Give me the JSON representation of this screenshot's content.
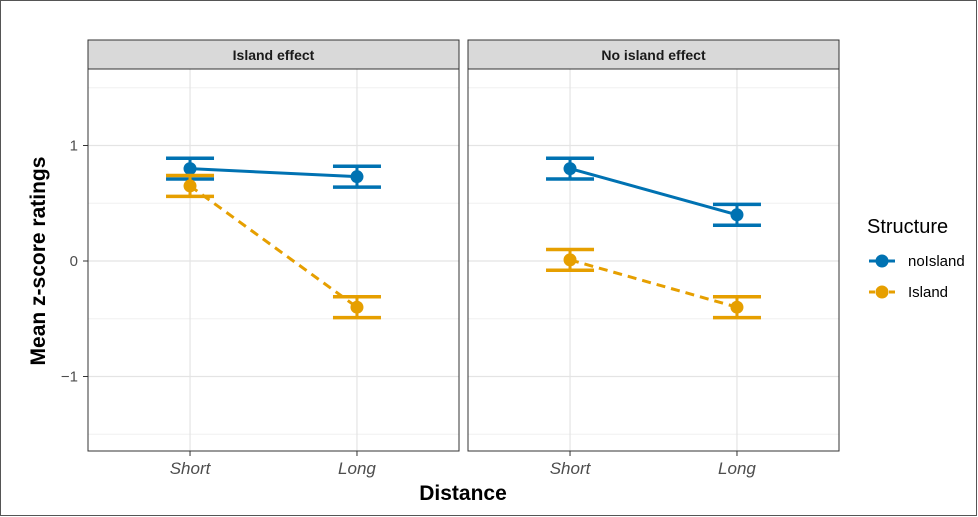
{
  "chart_data": {
    "type": "line",
    "facets": [
      "Island effect",
      "No island effect"
    ],
    "categories": [
      "Short",
      "Long"
    ],
    "xlabel": "Distance",
    "ylabel": "Mean z-score ratings",
    "ylim": [
      -1.5,
      1.5
    ],
    "yticks": [
      -1,
      0,
      1
    ],
    "ytick_labels": [
      "−1",
      "0",
      "1"
    ],
    "grid": true,
    "legend": {
      "title": "Structure",
      "placement": "right"
    },
    "series": [
      {
        "name": "noIsland",
        "color": "#0072B2",
        "linetype": "solid",
        "panels": [
          {
            "mean": [
              0.8,
              0.73
            ],
            "lower": [
              0.71,
              0.64
            ],
            "upper": [
              0.89,
              0.82
            ]
          },
          {
            "mean": [
              0.8,
              0.4
            ],
            "lower": [
              0.71,
              0.31
            ],
            "upper": [
              0.89,
              0.49
            ]
          }
        ]
      },
      {
        "name": "Island",
        "color": "#E69F00",
        "linetype": "dashed",
        "panels": [
          {
            "mean": [
              0.65,
              -0.4
            ],
            "lower": [
              0.56,
              -0.49
            ],
            "upper": [
              0.74,
              -0.31
            ]
          },
          {
            "mean": [
              0.01,
              -0.4
            ],
            "lower": [
              -0.08,
              -0.49
            ],
            "upper": [
              0.1,
              -0.31
            ]
          }
        ]
      }
    ]
  }
}
